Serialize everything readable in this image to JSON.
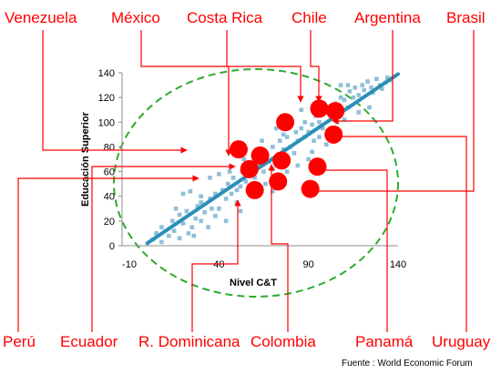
{
  "chart_data": {
    "type": "scatter",
    "xlabel": "Nivel C&T",
    "ylabel": "Educación Superior",
    "xlim": [
      -10,
      140
    ],
    "ylim": [
      0,
      140
    ],
    "x_ticks": [
      "-10",
      "40",
      "90",
      "140"
    ],
    "y_ticks": [
      "0",
      "20",
      "40",
      "60",
      "80",
      "100",
      "120",
      "140"
    ],
    "grid": false,
    "legend": "none",
    "trendline": {
      "from": [
        0,
        2
      ],
      "to": [
        140,
        139
      ]
    },
    "enclosure": "ellipse, green dashed",
    "series": [
      {
        "points": [
          [
            3,
            5
          ],
          [
            5,
            10
          ],
          [
            8,
            3
          ],
          [
            8,
            15
          ],
          [
            12,
            8
          ],
          [
            14,
            20
          ],
          [
            15,
            12
          ],
          [
            18,
            25
          ],
          [
            18,
            6
          ],
          [
            20,
            18
          ],
          [
            22,
            28
          ],
          [
            23,
            10
          ],
          [
            25,
            15
          ],
          [
            27,
            22
          ],
          [
            28,
            32
          ],
          [
            30,
            20
          ],
          [
            30,
            35
          ],
          [
            32,
            27
          ],
          [
            34,
            15
          ],
          [
            35,
            38
          ],
          [
            36,
            30
          ],
          [
            38,
            42
          ],
          [
            40,
            30
          ],
          [
            42,
            45
          ],
          [
            44,
            38
          ],
          [
            45,
            50
          ],
          [
            47,
            42
          ],
          [
            48,
            55
          ],
          [
            50,
            45
          ],
          [
            52,
            48
          ],
          [
            53,
            60
          ],
          [
            55,
            52
          ],
          [
            56,
            62
          ],
          [
            58,
            58
          ],
          [
            60,
            55
          ],
          [
            62,
            65
          ],
          [
            62,
            48
          ],
          [
            64,
            70
          ],
          [
            65,
            60
          ],
          [
            66,
            75
          ],
          [
            68,
            68
          ],
          [
            70,
            62
          ],
          [
            70,
            80
          ],
          [
            72,
            72
          ],
          [
            74,
            85
          ],
          [
            75,
            68
          ],
          [
            76,
            78
          ],
          [
            78,
            88
          ],
          [
            80,
            80
          ],
          [
            82,
            75
          ],
          [
            83,
            92
          ],
          [
            84,
            85
          ],
          [
            86,
            95
          ],
          [
            88,
            88
          ],
          [
            88,
            100
          ],
          [
            90,
            92
          ],
          [
            92,
            98
          ],
          [
            93,
            85
          ],
          [
            94,
            105
          ],
          [
            96,
            100
          ],
          [
            98,
            95
          ],
          [
            100,
            108
          ],
          [
            101,
            112
          ],
          [
            103,
            105
          ],
          [
            105,
            115
          ],
          [
            107,
            110
          ],
          [
            108,
            120
          ],
          [
            110,
            118
          ],
          [
            112,
            112
          ],
          [
            113,
            125
          ],
          [
            115,
            120
          ],
          [
            116,
            128
          ],
          [
            118,
            122
          ],
          [
            120,
            130
          ],
          [
            121,
            126
          ],
          [
            123,
            133
          ],
          [
            125,
            128
          ],
          [
            126,
            124
          ],
          [
            128,
            135
          ],
          [
            130,
            130
          ],
          [
            131,
            127
          ],
          [
            133,
            132
          ],
          [
            134,
            136
          ],
          [
            136,
            134
          ],
          [
            24,
            44
          ],
          [
            30,
            40
          ],
          [
            35,
            55
          ],
          [
            38,
            24
          ],
          [
            44,
            20
          ],
          [
            46,
            60
          ],
          [
            50,
            35
          ],
          [
            54,
            70
          ],
          [
            58,
            40
          ],
          [
            60,
            72
          ],
          [
            66,
            50
          ],
          [
            70,
            44
          ],
          [
            72,
            95
          ],
          [
            78,
            60
          ],
          [
            80,
            100
          ],
          [
            84,
            65
          ],
          [
            90,
            70
          ],
          [
            92,
            76
          ],
          [
            96,
            88
          ],
          [
            100,
            82
          ],
          [
            102,
            92
          ],
          [
            106,
            100
          ],
          [
            110,
            102
          ],
          [
            112,
            130
          ],
          [
            118,
            108
          ],
          [
            124,
            112
          ],
          [
            16,
            30
          ],
          [
            20,
            42
          ],
          [
            26,
            8
          ],
          [
            40,
            58
          ],
          [
            52,
            28
          ],
          [
            64,
            85
          ],
          [
            76,
            90
          ],
          [
            86,
            110
          ],
          [
            98,
            112
          ],
          [
            108,
            130
          ]
        ]
      }
    ],
    "highlighted": [
      {
        "name": "Venezuela",
        "x": 51,
        "y": 78
      },
      {
        "name": "México",
        "x": 63,
        "y": 73
      },
      {
        "name": "Costa Rica",
        "x": 77,
        "y": 100
      },
      {
        "name": "Chile",
        "x": 96,
        "y": 111
      },
      {
        "name": "Argentina",
        "x": 105,
        "y": 109
      },
      {
        "name": "Brasil",
        "x": 104,
        "y": 90
      },
      {
        "name": "Perú",
        "x": 57,
        "y": 62
      },
      {
        "name": "Ecuador",
        "x": 73,
        "y": 52
      },
      {
        "name": "R. Dominicana",
        "x": 60,
        "y": 45
      },
      {
        "name": "Colombia",
        "x": 75,
        "y": 69
      },
      {
        "name": "Panamá",
        "x": 95,
        "y": 64
      },
      {
        "name": "Uruguay",
        "x": 91,
        "y": 46
      }
    ]
  },
  "source": "Fuente : World Economic Forum"
}
